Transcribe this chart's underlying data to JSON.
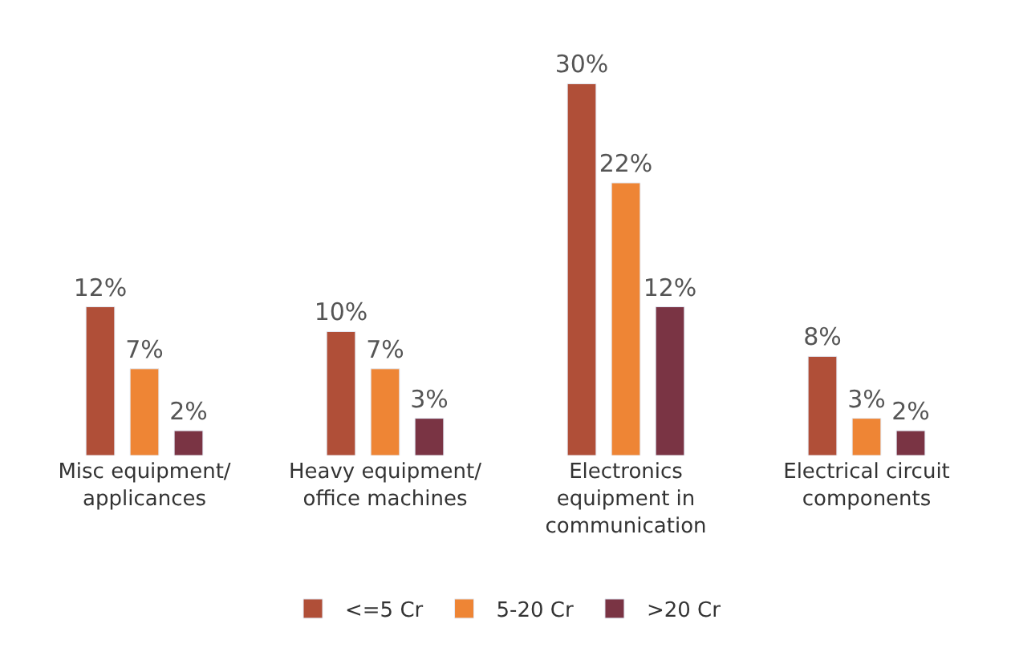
{
  "chart_data": {
    "type": "bar",
    "categories": [
      "Misc equipment/\napplicances",
      "Heavy equipment/\noffice machines",
      "Electronics\nequipment in\ncommunication",
      "Electrical circuit\ncomponents"
    ],
    "series": [
      {
        "name": "<=5 Cr",
        "color": "#b04f38",
        "values": [
          12,
          10,
          30,
          8
        ],
        "value_labels": [
          "12%",
          "10%",
          "30%",
          "8%"
        ]
      },
      {
        "name": "5-20 Cr",
        "color": "#ee8535",
        "values": [
          7,
          7,
          22,
          3
        ],
        "value_labels": [
          "7%",
          "7%",
          "22%",
          "3%"
        ]
      },
      {
        "name": ">20 Cr",
        "color": "#7a3444",
        "values": [
          2,
          3,
          12,
          2
        ],
        "value_labels": [
          "2%",
          "3%",
          "12%",
          "2%"
        ]
      }
    ],
    "legend": "bottom"
  }
}
